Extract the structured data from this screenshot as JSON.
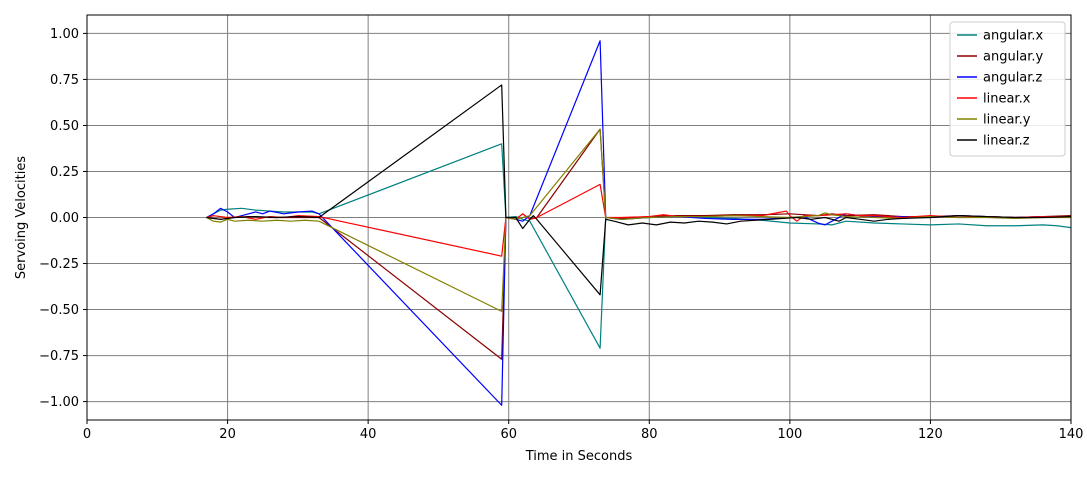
{
  "chart_data": {
    "type": "line",
    "title": "",
    "xlabel": "Time in Seconds",
    "ylabel": "Servoing Velocities",
    "xlim": [
      0,
      140
    ],
    "ylim": [
      -1.1,
      1.1
    ],
    "x_ticks": [
      0,
      20,
      40,
      60,
      80,
      100,
      120,
      140
    ],
    "x_tick_labels": [
      "0",
      "20",
      "40",
      "60",
      "80",
      "100",
      "120",
      "140"
    ],
    "y_ticks": [
      1.0,
      0.75,
      0.5,
      0.25,
      0.0,
      -0.25,
      -0.5,
      -0.75,
      -1.0
    ],
    "y_tick_labels": [
      "1.00",
      "0.75",
      "0.50",
      "0.25",
      "0.00",
      "−0.25",
      "−0.50",
      "−0.75",
      "−1.00"
    ],
    "grid": true,
    "legend_position": "top-right",
    "series": [
      {
        "name": "angular.x",
        "color": "#008080",
        "points": [
          [
            17,
            0.0
          ],
          [
            18,
            0.02
          ],
          [
            19,
            0.04
          ],
          [
            20,
            0.045
          ],
          [
            22,
            0.05
          ],
          [
            24,
            0.04
          ],
          [
            26,
            0.035
          ],
          [
            28,
            0.03
          ],
          [
            30,
            0.03
          ],
          [
            32,
            0.03
          ],
          [
            33,
            0.02
          ],
          [
            59,
            0.4
          ],
          [
            59.6,
            0.0
          ],
          [
            61,
            0.005
          ],
          [
            62,
            -0.01
          ],
          [
            63,
            -0.02
          ],
          [
            73,
            -0.71
          ],
          [
            73.8,
            0.0
          ],
          [
            76,
            -0.005
          ],
          [
            80,
            0.0
          ],
          [
            84,
            0.005
          ],
          [
            88,
            0.0
          ],
          [
            92,
            -0.005
          ],
          [
            96,
            -0.015
          ],
          [
            100,
            -0.03
          ],
          [
            104,
            -0.035
          ],
          [
            106,
            -0.04
          ],
          [
            108,
            -0.02
          ],
          [
            112,
            -0.03
          ],
          [
            116,
            -0.035
          ],
          [
            120,
            -0.04
          ],
          [
            124,
            -0.035
          ],
          [
            128,
            -0.045
          ],
          [
            132,
            -0.045
          ],
          [
            136,
            -0.04
          ],
          [
            138,
            -0.045
          ],
          [
            140,
            -0.055
          ]
        ]
      },
      {
        "name": "angular.y",
        "color": "#8b0000",
        "points": [
          [
            17,
            0.0
          ],
          [
            19,
            -0.01
          ],
          [
            21,
            0.0
          ],
          [
            23,
            0.005
          ],
          [
            26,
            0.0
          ],
          [
            30,
            0.0
          ],
          [
            33,
            0.0
          ],
          [
            59,
            -0.77
          ],
          [
            59.6,
            0.0
          ],
          [
            61,
            -0.01
          ],
          [
            62,
            0.02
          ],
          [
            63,
            -0.01
          ],
          [
            64,
            0.0
          ],
          [
            73,
            0.48
          ],
          [
            73.8,
            0.0
          ],
          [
            76,
            -0.005
          ],
          [
            80,
            0.005
          ],
          [
            84,
            0.01
          ],
          [
            88,
            0.01
          ],
          [
            92,
            0.015
          ],
          [
            96,
            0.015
          ],
          [
            100,
            0.02
          ],
          [
            104,
            0.01
          ],
          [
            106,
            0.02
          ],
          [
            108,
            0.01
          ],
          [
            112,
            0.015
          ],
          [
            116,
            0.005
          ],
          [
            120,
            0.005
          ],
          [
            124,
            0.01
          ],
          [
            128,
            0.005
          ],
          [
            132,
            0.0
          ],
          [
            136,
            0.005
          ],
          [
            140,
            0.01
          ]
        ]
      },
      {
        "name": "angular.z",
        "color": "#0000ff",
        "points": [
          [
            17,
            0.0
          ],
          [
            18,
            0.02
          ],
          [
            19,
            0.05
          ],
          [
            20,
            0.03
          ],
          [
            21,
            0.0
          ],
          [
            22,
            0.01
          ],
          [
            24,
            0.03
          ],
          [
            25,
            0.02
          ],
          [
            26,
            0.035
          ],
          [
            28,
            0.02
          ],
          [
            30,
            0.03
          ],
          [
            32,
            0.035
          ],
          [
            33,
            0.02
          ],
          [
            59,
            -1.02
          ],
          [
            59.6,
            0.0
          ],
          [
            61,
            -0.01
          ],
          [
            62,
            -0.02
          ],
          [
            63,
            0.01
          ],
          [
            73,
            0.96
          ],
          [
            73.8,
            0.0
          ],
          [
            76,
            -0.01
          ],
          [
            80,
            0.0
          ],
          [
            84,
            0.005
          ],
          [
            88,
            -0.005
          ],
          [
            92,
            -0.01
          ],
          [
            96,
            -0.01
          ],
          [
            100,
            0.0
          ],
          [
            102,
            0.005
          ],
          [
            104,
            -0.03
          ],
          [
            105,
            -0.04
          ],
          [
            106,
            -0.02
          ],
          [
            108,
            0.02
          ],
          [
            110,
            0.01
          ],
          [
            112,
            0.005
          ],
          [
            116,
            0.005
          ],
          [
            120,
            0.0
          ],
          [
            124,
            0.01
          ],
          [
            128,
            0.005
          ],
          [
            132,
            0.0
          ],
          [
            136,
            0.005
          ],
          [
            140,
            0.005
          ]
        ]
      },
      {
        "name": "linear.x",
        "color": "#ff0000",
        "points": [
          [
            17,
            0.0
          ],
          [
            18,
            0.01
          ],
          [
            20,
            0.0
          ],
          [
            22,
            0.005
          ],
          [
            24,
            -0.01
          ],
          [
            26,
            0.005
          ],
          [
            28,
            0.0
          ],
          [
            30,
            0.01
          ],
          [
            33,
            0.005
          ],
          [
            59,
            -0.21
          ],
          [
            59.6,
            0.0
          ],
          [
            61,
            -0.01
          ],
          [
            62,
            0.02
          ],
          [
            63,
            -0.01
          ],
          [
            64,
            0.0
          ],
          [
            73,
            0.18
          ],
          [
            73.8,
            0.0
          ],
          [
            76,
            0.0
          ],
          [
            80,
            0.005
          ],
          [
            82,
            0.015
          ],
          [
            84,
            0.005
          ],
          [
            88,
            0.005
          ],
          [
            92,
            0.01
          ],
          [
            96,
            0.01
          ],
          [
            99.5,
            0.035
          ],
          [
            100,
            0.01
          ],
          [
            101,
            -0.02
          ],
          [
            102,
            0.01
          ],
          [
            104,
            0.01
          ],
          [
            106,
            0.015
          ],
          [
            108,
            0.02
          ],
          [
            110,
            0.01
          ],
          [
            112,
            0.01
          ],
          [
            116,
            0.0
          ],
          [
            120,
            0.01
          ],
          [
            124,
            0.0
          ],
          [
            128,
            0.005
          ],
          [
            132,
            0.0
          ],
          [
            136,
            0.005
          ],
          [
            140,
            0.005
          ]
        ]
      },
      {
        "name": "linear.y",
        "color": "#808000",
        "points": [
          [
            17,
            0.0
          ],
          [
            18,
            -0.02
          ],
          [
            19,
            -0.025
          ],
          [
            20,
            -0.01
          ],
          [
            21,
            -0.02
          ],
          [
            23,
            -0.015
          ],
          [
            25,
            -0.02
          ],
          [
            27,
            -0.015
          ],
          [
            29,
            -0.02
          ],
          [
            31,
            -0.015
          ],
          [
            33,
            -0.02
          ],
          [
            59,
            -0.51
          ],
          [
            59.6,
            0.0
          ],
          [
            61,
            -0.01
          ],
          [
            62,
            0.0
          ],
          [
            63,
            0.01
          ],
          [
            73,
            0.48
          ],
          [
            73.8,
            0.0
          ],
          [
            76,
            -0.01
          ],
          [
            80,
            0.0
          ],
          [
            84,
            0.005
          ],
          [
            88,
            0.005
          ],
          [
            92,
            0.01
          ],
          [
            96,
            0.005
          ],
          [
            100,
            0.0
          ],
          [
            104,
            0.01
          ],
          [
            105,
            0.025
          ],
          [
            106,
            0.015
          ],
          [
            108,
            0.005
          ],
          [
            112,
            0.0
          ],
          [
            116,
            -0.005
          ],
          [
            120,
            0.005
          ],
          [
            124,
            0.0
          ],
          [
            128,
            0.0
          ],
          [
            132,
            -0.005
          ],
          [
            136,
            0.0
          ],
          [
            140,
            0.0
          ]
        ]
      },
      {
        "name": "linear.z",
        "color": "#000000",
        "points": [
          [
            17,
            0.0
          ],
          [
            19,
            -0.01
          ],
          [
            21,
            0.0
          ],
          [
            24,
            0.005
          ],
          [
            27,
            0.0
          ],
          [
            30,
            0.005
          ],
          [
            33,
            0.0
          ],
          [
            59,
            0.72
          ],
          [
            59.6,
            0.0
          ],
          [
            61,
            0.0
          ],
          [
            62,
            -0.06
          ],
          [
            63,
            -0.01
          ],
          [
            63.5,
            0.01
          ],
          [
            64,
            -0.01
          ],
          [
            73,
            -0.42
          ],
          [
            73.8,
            -0.01
          ],
          [
            75,
            -0.02
          ],
          [
            77,
            -0.04
          ],
          [
            79,
            -0.03
          ],
          [
            81,
            -0.04
          ],
          [
            83,
            -0.025
          ],
          [
            85,
            -0.03
          ],
          [
            87,
            -0.02
          ],
          [
            89,
            -0.025
          ],
          [
            91,
            -0.035
          ],
          [
            93,
            -0.02
          ],
          [
            95,
            -0.015
          ],
          [
            97,
            -0.01
          ],
          [
            99,
            -0.005
          ],
          [
            101,
            0.0
          ],
          [
            103,
            -0.01
          ],
          [
            105,
            0.0
          ],
          [
            107,
            -0.02
          ],
          [
            108,
            0.0
          ],
          [
            110,
            -0.01
          ],
          [
            112,
            -0.02
          ],
          [
            114,
            -0.01
          ],
          [
            116,
            -0.005
          ],
          [
            120,
            0.0
          ],
          [
            124,
            0.01
          ],
          [
            128,
            0.005
          ],
          [
            132,
            0.0
          ],
          [
            136,
            0.0
          ],
          [
            140,
            0.005
          ]
        ]
      }
    ]
  }
}
